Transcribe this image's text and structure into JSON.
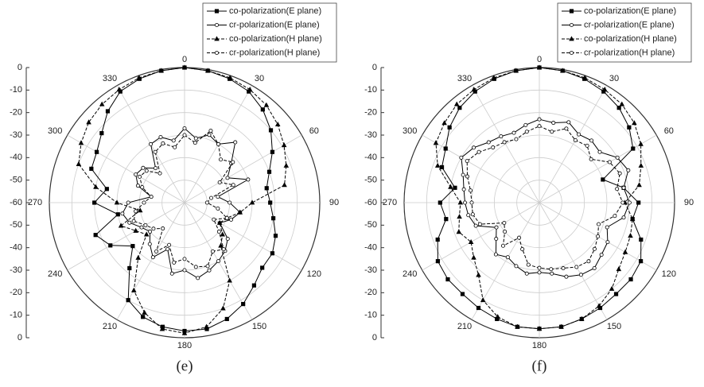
{
  "chart_data": [
    {
      "type": "polar",
      "title": "(e)",
      "theta": [
        0,
        10,
        20,
        30,
        40,
        50,
        60,
        70,
        80,
        90,
        100,
        110,
        120,
        130,
        140,
        150,
        160,
        170,
        180,
        190,
        200,
        210,
        220,
        230,
        240,
        250,
        260,
        270,
        280,
        290,
        300,
        310,
        320,
        330,
        340,
        350
      ],
      "rlim": [
        -60,
        0
      ],
      "rticks": [
        0,
        -10,
        -20,
        -30,
        -40,
        -50,
        -60
      ],
      "thetaticks": [
        0,
        30,
        60,
        90,
        120,
        150,
        180,
        210,
        240,
        270,
        300,
        330
      ],
      "grid": true,
      "series": [
        {
          "name": "co-polarization(E plane)",
          "color": "#000000",
          "marker": "square",
          "filled": true,
          "dashed": false,
          "values": [
            0,
            -0.5,
            -1.5,
            -3,
            -6,
            -10,
            -15,
            -20,
            -23,
            -22,
            -20,
            -17,
            -15,
            -15,
            -12,
            -8,
            -5,
            -3,
            -3,
            -4,
            -6,
            -10,
            -22,
            -30,
            -22,
            -18,
            -30,
            -20,
            -25,
            -16,
            -15,
            -12,
            -7,
            -3,
            -1.5,
            -0.5
          ]
        },
        {
          "name": "cr-polarization(E plane)",
          "color": "#000000",
          "marker": "circle",
          "filled": false,
          "dashed": false,
          "values": [
            -27,
            -31,
            -28,
            -30,
            -25,
            -33,
            -38,
            -30,
            -45,
            -40,
            -35,
            -38,
            -42,
            -35,
            -32,
            -30,
            -28,
            -26,
            -30,
            -28,
            -38,
            -32,
            -36,
            -40,
            -38,
            -34,
            -32,
            -35,
            -45,
            -38,
            -35,
            -36,
            -40,
            -30,
            -29,
            -32
          ]
        },
        {
          "name": "co-polarization(H plane)",
          "color": "#000000",
          "marker": "triangle",
          "filled": true,
          "dashed": true,
          "values": [
            0,
            -0.5,
            -1,
            -2,
            -3.5,
            -6,
            -9,
            -12,
            -15,
            -30,
            -35,
            -40,
            -42,
            -38,
            -35,
            -20,
            -10,
            -4,
            -2,
            -3,
            -8,
            -15,
            -28,
            -38,
            -35,
            -30,
            -40,
            -30,
            -20,
            -10,
            -7,
            -4.5,
            -3,
            -2,
            -1,
            -0.5
          ]
        },
        {
          "name": "cr-polarization(H plane)",
          "color": "#000000",
          "marker": "circle",
          "filled": false,
          "dashed": true,
          "values": [
            -30,
            -33,
            -26,
            -30,
            -35,
            -32,
            -42,
            -37,
            -48,
            -50,
            -45,
            -40,
            -45,
            -40,
            -33,
            -35,
            -30,
            -31,
            -35,
            -33,
            -40,
            -35,
            -45,
            -42,
            -40,
            -36,
            -38,
            -42,
            -45,
            -40,
            -37,
            -38,
            -43,
            -34,
            -32,
            -35
          ]
        }
      ]
    },
    {
      "type": "polar",
      "title": "(f)",
      "theta": [
        0,
        10,
        20,
        30,
        40,
        50,
        60,
        70,
        80,
        90,
        100,
        110,
        120,
        130,
        140,
        150,
        160,
        170,
        180,
        190,
        200,
        210,
        220,
        230,
        240,
        250,
        260,
        270,
        280,
        290,
        300,
        310,
        320,
        330,
        340,
        350
      ],
      "rlim": [
        -60,
        0
      ],
      "rticks": [
        0,
        -10,
        -20,
        -30,
        -40,
        -50,
        -60
      ],
      "thetaticks": [
        0,
        30,
        60,
        90,
        120,
        150,
        180,
        210,
        240,
        270,
        300,
        330
      ],
      "grid": true,
      "series": [
        {
          "name": "co-polarization(E plane)",
          "color": "#000000",
          "marker": "square",
          "filled": true,
          "dashed": false,
          "values": [
            0,
            -0.5,
            -1.5,
            -3,
            -5,
            -8,
            -12,
            -30,
            -22,
            -16,
            -18,
            -12,
            -8,
            -7,
            -7,
            -6,
            -5,
            -4,
            -4,
            -4,
            -5,
            -6,
            -7,
            -7,
            -8,
            -12,
            -18,
            -16,
            -22,
            -14,
            -12,
            -8,
            -5,
            -3,
            -1.5,
            -0.5
          ]
        },
        {
          "name": "cr-polarization(E plane)",
          "color": "#000000",
          "marker": "circle",
          "filled": false,
          "dashed": false,
          "values": [
            -23,
            -24,
            -22,
            -25,
            -24,
            -25,
            -20,
            -18,
            -22,
            -20,
            -22,
            -28,
            -25,
            -24,
            -22,
            -23,
            -25,
            -28,
            -29,
            -28,
            -30,
            -32,
            -30,
            -35,
            -38,
            -30,
            -28,
            -27,
            -26,
            -24,
            -20,
            -22,
            -25,
            -26,
            -27,
            -25
          ]
        },
        {
          "name": "co-polarization(H plane)",
          "color": "#000000",
          "marker": "triangle",
          "filled": true,
          "dashed": true,
          "values": [
            0,
            -0.5,
            -1,
            -2,
            -3,
            -5,
            -8,
            -12,
            -15,
            -22,
            -18,
            -17,
            -16,
            -14,
            -10,
            -7,
            -5,
            -4,
            -4,
            -4,
            -6,
            -10,
            -18,
            -22,
            -25,
            -22,
            -24,
            -25,
            -20,
            -12,
            -7,
            -5,
            -3,
            -2,
            -1,
            -0.5
          ]
        },
        {
          "name": "cr-polarization(H plane)",
          "color": "#000000",
          "marker": "circle",
          "filled": false,
          "dashed": true,
          "values": [
            -26,
            -28,
            -25,
            -28,
            -27,
            -30,
            -24,
            -22,
            -25,
            -23,
            -26,
            -32,
            -30,
            -28,
            -26,
            -27,
            -29,
            -30,
            -31,
            -32,
            -38,
            -42,
            -35,
            -40,
            -42,
            -32,
            -30,
            -30,
            -29,
            -26,
            -23,
            -25,
            -28,
            -29,
            -30,
            -28
          ]
        }
      ]
    }
  ]
}
